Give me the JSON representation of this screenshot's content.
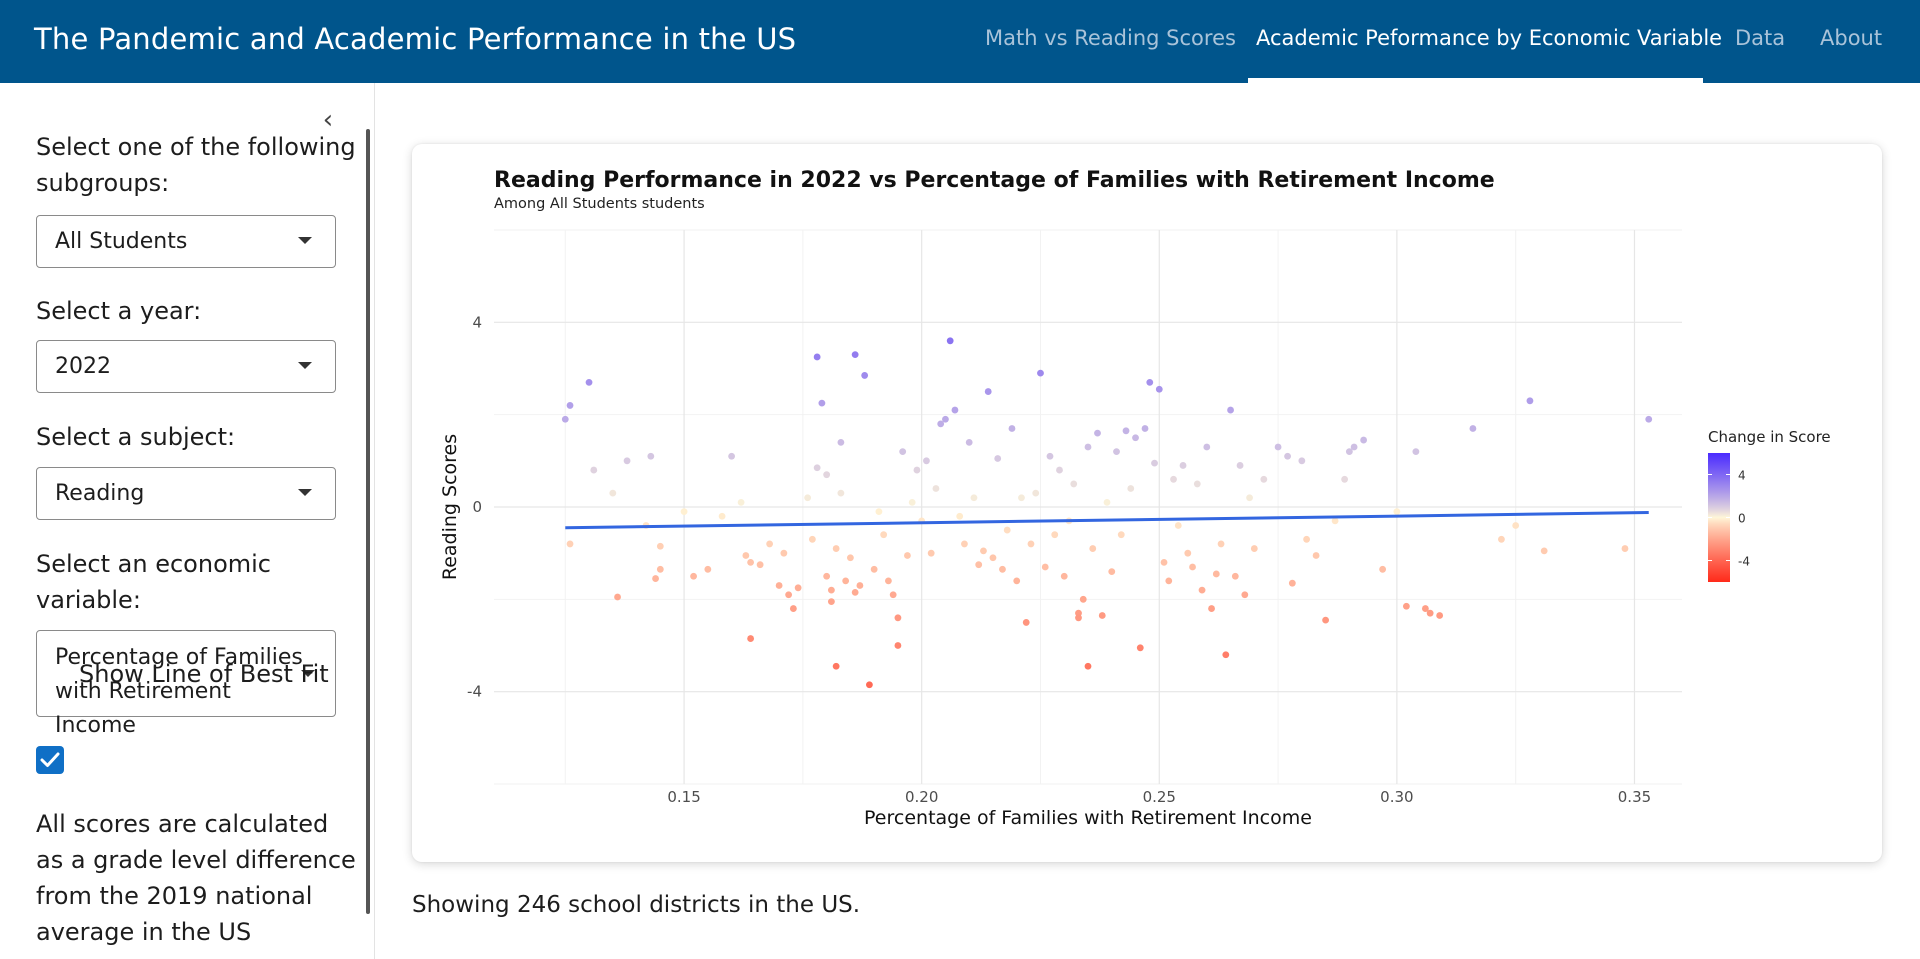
{
  "navbar": {
    "title": "The Pandemic and Academic Performance in the US",
    "tabs": [
      {
        "label": "Math vs Reading Scores",
        "active": false
      },
      {
        "label": "Academic Peformance by Economic Variable",
        "active": true
      },
      {
        "label": "Data",
        "active": false
      },
      {
        "label": "About",
        "active": false
      }
    ]
  },
  "sidebar": {
    "collapse_icon": "chevron-left-icon",
    "subgroup_label": "Select one of the following subgroups:",
    "subgroup_value": "All Students",
    "year_label": "Select a year:",
    "year_value": "2022",
    "subject_label": "Select a subject:",
    "subject_value": "Reading",
    "econ_label": "Select an economic variable:",
    "econ_value": "Percentage of Families with Retirement Income",
    "best_fit_label": "Show Line of Best Fit",
    "best_fit_checked": true,
    "note": "All scores are calculated as a grade level difference from the 2019 national average in the US"
  },
  "footer": {
    "text": "Showing 246 school districts in the US."
  },
  "colors": {
    "navbar": "#00558c",
    "checkbox": "#0f6fc6",
    "fit_line": "#3366e0",
    "gradient_high": "#4b2cff",
    "gradient_mid": "#fff6d8",
    "gradient_low": "#ff2a1a"
  },
  "chart_data": {
    "type": "scatter",
    "title": "Reading Performance in 2022 vs Percentage of Families with Retirement Income",
    "subtitle": "Among All Students students",
    "xlabel": "Percentage of Families with Retirement Income",
    "ylabel": "Reading Scores",
    "xlim": [
      0.11,
      0.36
    ],
    "ylim": [
      -6,
      6
    ],
    "xticks": [
      0.15,
      0.2,
      0.25,
      0.3,
      0.35
    ],
    "xtick_labels": [
      "0.15",
      "0.20",
      "0.25",
      "0.30",
      "0.35"
    ],
    "yticks": [
      -4,
      0,
      4
    ],
    "ytick_labels": [
      "-4",
      "0",
      "4"
    ],
    "grid": true,
    "legend": {
      "title": "Change in Score",
      "placement": "right",
      "ticks": [
        4,
        0,
        -4
      ],
      "tick_labels": [
        "4",
        "0",
        "-4"
      ],
      "range": [
        -6,
        6
      ]
    },
    "fit_line": {
      "x": [
        0.125,
        0.353
      ],
      "y": [
        -0.45,
        -0.12
      ]
    },
    "points": [
      {
        "x": 0.125,
        "y": 1.9
      },
      {
        "x": 0.126,
        "y": 2.2
      },
      {
        "x": 0.13,
        "y": 2.7
      },
      {
        "x": 0.135,
        "y": 0.3
      },
      {
        "x": 0.126,
        "y": -0.8
      },
      {
        "x": 0.131,
        "y": 0.8
      },
      {
        "x": 0.136,
        "y": -1.95
      },
      {
        "x": 0.138,
        "y": 1.0
      },
      {
        "x": 0.142,
        "y": -0.4
      },
      {
        "x": 0.143,
        "y": 1.1
      },
      {
        "x": 0.144,
        "y": -1.55
      },
      {
        "x": 0.145,
        "y": -1.35
      },
      {
        "x": 0.145,
        "y": -0.85
      },
      {
        "x": 0.15,
        "y": -0.1
      },
      {
        "x": 0.152,
        "y": -1.5
      },
      {
        "x": 0.155,
        "y": -1.35
      },
      {
        "x": 0.158,
        "y": -0.2
      },
      {
        "x": 0.16,
        "y": 1.1
      },
      {
        "x": 0.162,
        "y": 0.1
      },
      {
        "x": 0.163,
        "y": -1.05
      },
      {
        "x": 0.164,
        "y": -1.2
      },
      {
        "x": 0.166,
        "y": -1.25
      },
      {
        "x": 0.168,
        "y": -0.8
      },
      {
        "x": 0.17,
        "y": -1.7
      },
      {
        "x": 0.171,
        "y": -1.0
      },
      {
        "x": 0.172,
        "y": -1.9
      },
      {
        "x": 0.173,
        "y": -2.2
      },
      {
        "x": 0.174,
        "y": -1.75
      },
      {
        "x": 0.164,
        "y": -2.85
      },
      {
        "x": 0.176,
        "y": 0.2
      },
      {
        "x": 0.177,
        "y": -0.7
      },
      {
        "x": 0.178,
        "y": 0.85
      },
      {
        "x": 0.178,
        "y": 3.25
      },
      {
        "x": 0.179,
        "y": 2.25
      },
      {
        "x": 0.18,
        "y": 0.7
      },
      {
        "x": 0.18,
        "y": -1.5
      },
      {
        "x": 0.181,
        "y": -1.8
      },
      {
        "x": 0.181,
        "y": -2.05
      },
      {
        "x": 0.182,
        "y": -0.9
      },
      {
        "x": 0.183,
        "y": 1.4
      },
      {
        "x": 0.183,
        "y": 0.3
      },
      {
        "x": 0.184,
        "y": -1.6
      },
      {
        "x": 0.185,
        "y": -1.1
      },
      {
        "x": 0.186,
        "y": -1.85
      },
      {
        "x": 0.186,
        "y": 3.3
      },
      {
        "x": 0.187,
        "y": -1.7
      },
      {
        "x": 0.188,
        "y": 2.85
      },
      {
        "x": 0.182,
        "y": -3.45
      },
      {
        "x": 0.189,
        "y": -3.85
      },
      {
        "x": 0.19,
        "y": -1.35
      },
      {
        "x": 0.191,
        "y": -0.1
      },
      {
        "x": 0.192,
        "y": -0.6
      },
      {
        "x": 0.193,
        "y": -1.6
      },
      {
        "x": 0.194,
        "y": -1.9
      },
      {
        "x": 0.195,
        "y": -2.4
      },
      {
        "x": 0.195,
        "y": -3.0
      },
      {
        "x": 0.196,
        "y": 1.2
      },
      {
        "x": 0.197,
        "y": -1.05
      },
      {
        "x": 0.198,
        "y": 0.1
      },
      {
        "x": 0.199,
        "y": 0.8
      },
      {
        "x": 0.2,
        "y": -0.3
      },
      {
        "x": 0.201,
        "y": 1.0
      },
      {
        "x": 0.202,
        "y": -1.0
      },
      {
        "x": 0.203,
        "y": 0.4
      },
      {
        "x": 0.204,
        "y": 1.8
      },
      {
        "x": 0.205,
        "y": 1.9
      },
      {
        "x": 0.206,
        "y": 3.6
      },
      {
        "x": 0.207,
        "y": 2.1
      },
      {
        "x": 0.208,
        "y": -0.2
      },
      {
        "x": 0.209,
        "y": -0.8
      },
      {
        "x": 0.21,
        "y": 1.4
      },
      {
        "x": 0.211,
        "y": 0.2
      },
      {
        "x": 0.212,
        "y": -1.25
      },
      {
        "x": 0.213,
        "y": -0.95
      },
      {
        "x": 0.214,
        "y": 2.5
      },
      {
        "x": 0.215,
        "y": -1.1
      },
      {
        "x": 0.216,
        "y": 1.05
      },
      {
        "x": 0.217,
        "y": -1.35
      },
      {
        "x": 0.218,
        "y": -0.5
      },
      {
        "x": 0.219,
        "y": 1.7
      },
      {
        "x": 0.22,
        "y": -1.6
      },
      {
        "x": 0.221,
        "y": 0.2
      },
      {
        "x": 0.222,
        "y": -2.5
      },
      {
        "x": 0.223,
        "y": -0.8
      },
      {
        "x": 0.224,
        "y": 0.3
      },
      {
        "x": 0.225,
        "y": 2.9
      },
      {
        "x": 0.226,
        "y": -1.3
      },
      {
        "x": 0.227,
        "y": 1.1
      },
      {
        "x": 0.228,
        "y": -0.6
      },
      {
        "x": 0.229,
        "y": 0.8
      },
      {
        "x": 0.23,
        "y": -1.5
      },
      {
        "x": 0.231,
        "y": -0.3
      },
      {
        "x": 0.232,
        "y": 0.5
      },
      {
        "x": 0.233,
        "y": -2.3
      },
      {
        "x": 0.233,
        "y": -2.4
      },
      {
        "x": 0.234,
        "y": -2.0
      },
      {
        "x": 0.235,
        "y": 1.3
      },
      {
        "x": 0.235,
        "y": -3.45
      },
      {
        "x": 0.236,
        "y": -0.9
      },
      {
        "x": 0.237,
        "y": 1.6
      },
      {
        "x": 0.238,
        "y": -2.35
      },
      {
        "x": 0.239,
        "y": 0.1
      },
      {
        "x": 0.24,
        "y": -1.4
      },
      {
        "x": 0.241,
        "y": 1.2
      },
      {
        "x": 0.242,
        "y": -0.6
      },
      {
        "x": 0.243,
        "y": 1.65
      },
      {
        "x": 0.244,
        "y": 0.4
      },
      {
        "x": 0.245,
        "y": 1.5
      },
      {
        "x": 0.246,
        "y": -3.05
      },
      {
        "x": 0.247,
        "y": 1.7
      },
      {
        "x": 0.248,
        "y": 2.7
      },
      {
        "x": 0.249,
        "y": 0.95
      },
      {
        "x": 0.25,
        "y": 2.55
      },
      {
        "x": 0.251,
        "y": -1.2
      },
      {
        "x": 0.252,
        "y": -1.6
      },
      {
        "x": 0.253,
        "y": 0.6
      },
      {
        "x": 0.254,
        "y": -0.4
      },
      {
        "x": 0.255,
        "y": 0.9
      },
      {
        "x": 0.256,
        "y": -1.0
      },
      {
        "x": 0.257,
        "y": -1.3
      },
      {
        "x": 0.258,
        "y": 0.5
      },
      {
        "x": 0.259,
        "y": -1.8
      },
      {
        "x": 0.26,
        "y": 1.3
      },
      {
        "x": 0.261,
        "y": -2.2
      },
      {
        "x": 0.262,
        "y": -1.45
      },
      {
        "x": 0.263,
        "y": -0.8
      },
      {
        "x": 0.264,
        "y": -3.2
      },
      {
        "x": 0.265,
        "y": 2.1
      },
      {
        "x": 0.266,
        "y": -1.5
      },
      {
        "x": 0.267,
        "y": 0.9
      },
      {
        "x": 0.268,
        "y": -1.9
      },
      {
        "x": 0.269,
        "y": 0.2
      },
      {
        "x": 0.27,
        "y": -0.9
      },
      {
        "x": 0.272,
        "y": 0.6
      },
      {
        "x": 0.275,
        "y": 1.3
      },
      {
        "x": 0.277,
        "y": 1.1
      },
      {
        "x": 0.278,
        "y": -1.65
      },
      {
        "x": 0.28,
        "y": 1.0
      },
      {
        "x": 0.281,
        "y": -0.7
      },
      {
        "x": 0.283,
        "y": -1.05
      },
      {
        "x": 0.285,
        "y": -2.45
      },
      {
        "x": 0.287,
        "y": -0.3
      },
      {
        "x": 0.289,
        "y": 0.6
      },
      {
        "x": 0.29,
        "y": 1.2
      },
      {
        "x": 0.291,
        "y": 1.3
      },
      {
        "x": 0.293,
        "y": 1.45
      },
      {
        "x": 0.297,
        "y": -1.35
      },
      {
        "x": 0.3,
        "y": -0.1
      },
      {
        "x": 0.302,
        "y": -2.15
      },
      {
        "x": 0.304,
        "y": 1.2
      },
      {
        "x": 0.306,
        "y": -2.2
      },
      {
        "x": 0.307,
        "y": -2.3
      },
      {
        "x": 0.309,
        "y": -2.35
      },
      {
        "x": 0.316,
        "y": 1.7
      },
      {
        "x": 0.322,
        "y": -0.7
      },
      {
        "x": 0.325,
        "y": -0.4
      },
      {
        "x": 0.328,
        "y": 2.3
      },
      {
        "x": 0.331,
        "y": -0.95
      },
      {
        "x": 0.348,
        "y": -0.9
      },
      {
        "x": 0.353,
        "y": 1.9
      }
    ]
  }
}
